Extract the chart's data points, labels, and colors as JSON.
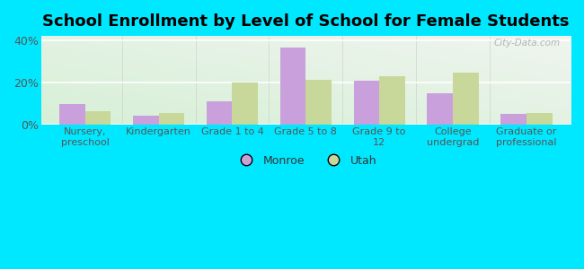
{
  "title": "School Enrollment by Level of School for Female Students",
  "categories": [
    "Nursery,\npreschool",
    "Kindergarten",
    "Grade 1 to 4",
    "Grade 5 to 8",
    "Grade 9 to\n12",
    "College\nundergrad",
    "Graduate or\nprofessional"
  ],
  "monroe_values": [
    10.0,
    4.5,
    11.0,
    36.5,
    21.0,
    15.0,
    5.0
  ],
  "utah_values": [
    6.5,
    5.5,
    20.0,
    21.5,
    23.0,
    24.5,
    5.5
  ],
  "monroe_color": "#c9a0dc",
  "utah_color": "#c8d89a",
  "background_outer": "#00e8ff",
  "ylim": [
    0,
    42
  ],
  "yticks": [
    0,
    20,
    40
  ],
  "ytick_labels": [
    "0%",
    "20%",
    "40%"
  ],
  "legend_labels": [
    "Monroe",
    "Utah"
  ],
  "bar_width": 0.35,
  "title_fontsize": 13,
  "watermark": "City-Data.com",
  "grad_colors": [
    "#b8e8c8",
    "#e8f0e8",
    "#f0f0f0"
  ],
  "tick_fontsize": 8
}
